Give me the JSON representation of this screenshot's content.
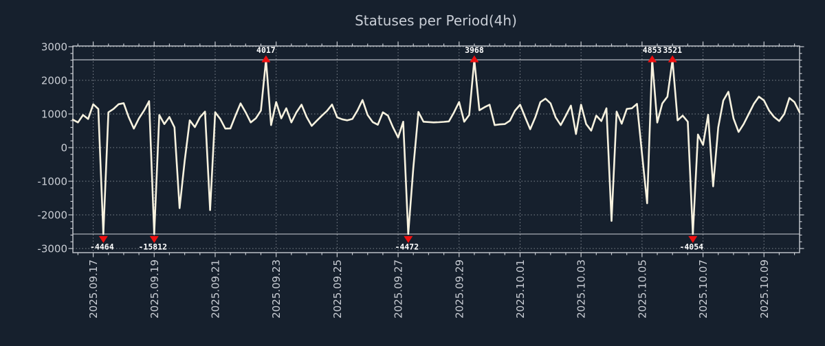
{
  "title": "Statuses per Period(4h)",
  "colors": {
    "background": "#16202d",
    "frame": "#c8ccd2",
    "grid": "#b9bec5",
    "series": "#f7f2df",
    "marker": "#f01010",
    "marker_label": "#ffffff",
    "text": "#c9cdd4"
  },
  "chart_data": {
    "type": "line",
    "title": "Statuses per Period(4h)",
    "period": "4h",
    "legend": false,
    "grid": true,
    "ylim": [
      -3000,
      3000
    ],
    "y_ticks": [
      3000,
      2000,
      1000,
      0,
      -1000,
      -2000,
      -3000
    ],
    "clip_high": 2610,
    "clip_low": -2570,
    "x_tick_labels": [
      "2025.09.17",
      "2025.09.19",
      "2025.09.21",
      "2025.09.23",
      "2025.09.25",
      "2025.09.27",
      "2025.09.29",
      "2025.10.01",
      "2025.10.03",
      "2025.10.05",
      "2025.10.07",
      "2025.10.09"
    ],
    "x_tick_indices": [
      4,
      16,
      28,
      40,
      52,
      64,
      76,
      88,
      100,
      112,
      124,
      136
    ],
    "values": [
      830,
      750,
      970,
      850,
      1290,
      1150,
      -4464,
      1050,
      1150,
      1290,
      1320,
      900,
      565,
      870,
      1100,
      1380,
      -15812,
      970,
      700,
      910,
      600,
      -1800,
      -400,
      810,
      610,
      900,
      1070,
      -1860,
      1050,
      850,
      565,
      570,
      950,
      1315,
      1050,
      750,
      870,
      1100,
      4017,
      670,
      1355,
      870,
      1170,
      750,
      1050,
      1275,
      910,
      645,
      800,
      950,
      1090,
      1280,
      900,
      840,
      810,
      850,
      1100,
      1415,
      970,
      760,
      680,
      1050,
      950,
      600,
      300,
      770,
      -4472,
      -600,
      1060,
      770,
      760,
      750,
      755,
      765,
      780,
      1050,
      1355,
      770,
      970,
      3968,
      1110,
      1200,
      1275,
      670,
      690,
      700,
      800,
      1100,
      1275,
      900,
      545,
      900,
      1350,
      1455,
      1315,
      900,
      670,
      950,
      1250,
      405,
      1275,
      700,
      505,
      950,
      790,
      1170,
      -2180,
      1070,
      710,
      1150,
      1170,
      1300,
      -200,
      -1655,
      4853,
      745,
      1315,
      1515,
      3521,
      810,
      950,
      770,
      -4054,
      390,
      80,
      975,
      -1150,
      600,
      1400,
      1660,
      870,
      465,
      700,
      1000,
      1300,
      1515,
      1400,
      1100,
      910,
      790,
      1000,
      1475,
      1350,
      1050
    ],
    "annotations": [
      {
        "index": 6,
        "value": -4464,
        "label": "-4464",
        "dir": "down"
      },
      {
        "index": 16,
        "value": -15812,
        "label": "-15812",
        "dir": "down"
      },
      {
        "index": 38,
        "value": 4017,
        "label": "4017",
        "dir": "up"
      },
      {
        "index": 66,
        "value": -4472,
        "label": "-4472",
        "dir": "down"
      },
      {
        "index": 79,
        "value": 3968,
        "label": "3968",
        "dir": "up"
      },
      {
        "index": 114,
        "value": 4853,
        "label": "4853",
        "dir": "up"
      },
      {
        "index": 118,
        "value": 3521,
        "label": "3521",
        "dir": "up"
      },
      {
        "index": 122,
        "value": -4054,
        "label": "-4054",
        "dir": "down"
      }
    ]
  }
}
